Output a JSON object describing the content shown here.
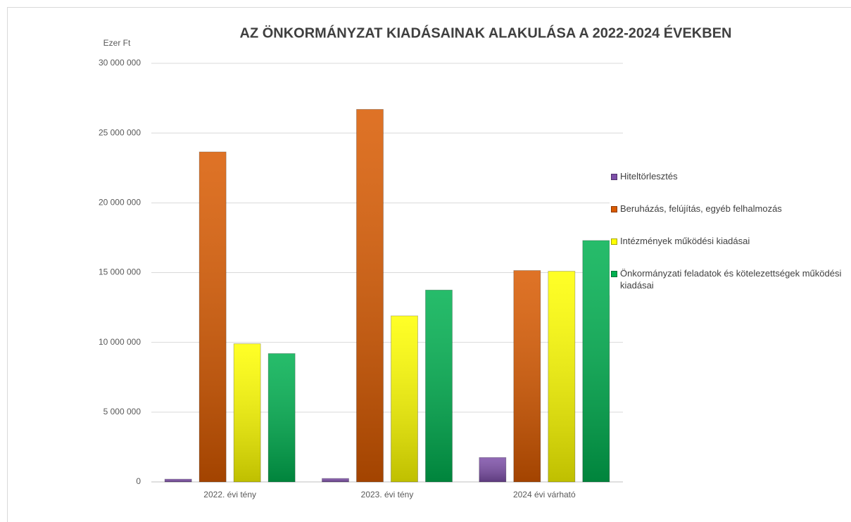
{
  "chart_data": {
    "type": "bar",
    "title": "AZ ÖNKORMÁNYZAT KIADÁSAINAK ALAKULÁSA A 2022-2024 ÉVEKBEN",
    "y_label": "Ezer Ft",
    "categories": [
      "2022. évi tény",
      "2023. évi tény",
      "2024 évi várható"
    ],
    "series": [
      {
        "name": "Hiteltörlesztés",
        "color": "#7d4fa8",
        "values": [
          200000,
          250000,
          1750000
        ]
      },
      {
        "name": "Beruházás, felújítás, egyéb felhalmozás",
        "color": "#d95a00",
        "values": [
          23650000,
          26700000,
          15150000
        ]
      },
      {
        "name": "Intézmények működési kiadásai",
        "color": "#ffff00",
        "values": [
          9900000,
          11900000,
          15100000
        ]
      },
      {
        "name": "Önkormányzati feladatok és kötelezettségek működési kiadásai",
        "color": "#00b050",
        "values": [
          9200000,
          13750000,
          17300000
        ]
      }
    ],
    "ylim": [
      0,
      30000000
    ],
    "yticks": [
      0,
      {
        "value": 5000000,
        "label": "5 000 000"
      },
      {
        "value": 10000000,
        "label": "10 000 000"
      },
      {
        "value": 15000000,
        "label": "15 000 000"
      },
      {
        "value": 20000000,
        "label": "20 000 000"
      },
      {
        "value": 25000000,
        "label": "25 000 000"
      },
      {
        "value": 30000000,
        "label": "30 000 000"
      }
    ],
    "grid": true
  }
}
